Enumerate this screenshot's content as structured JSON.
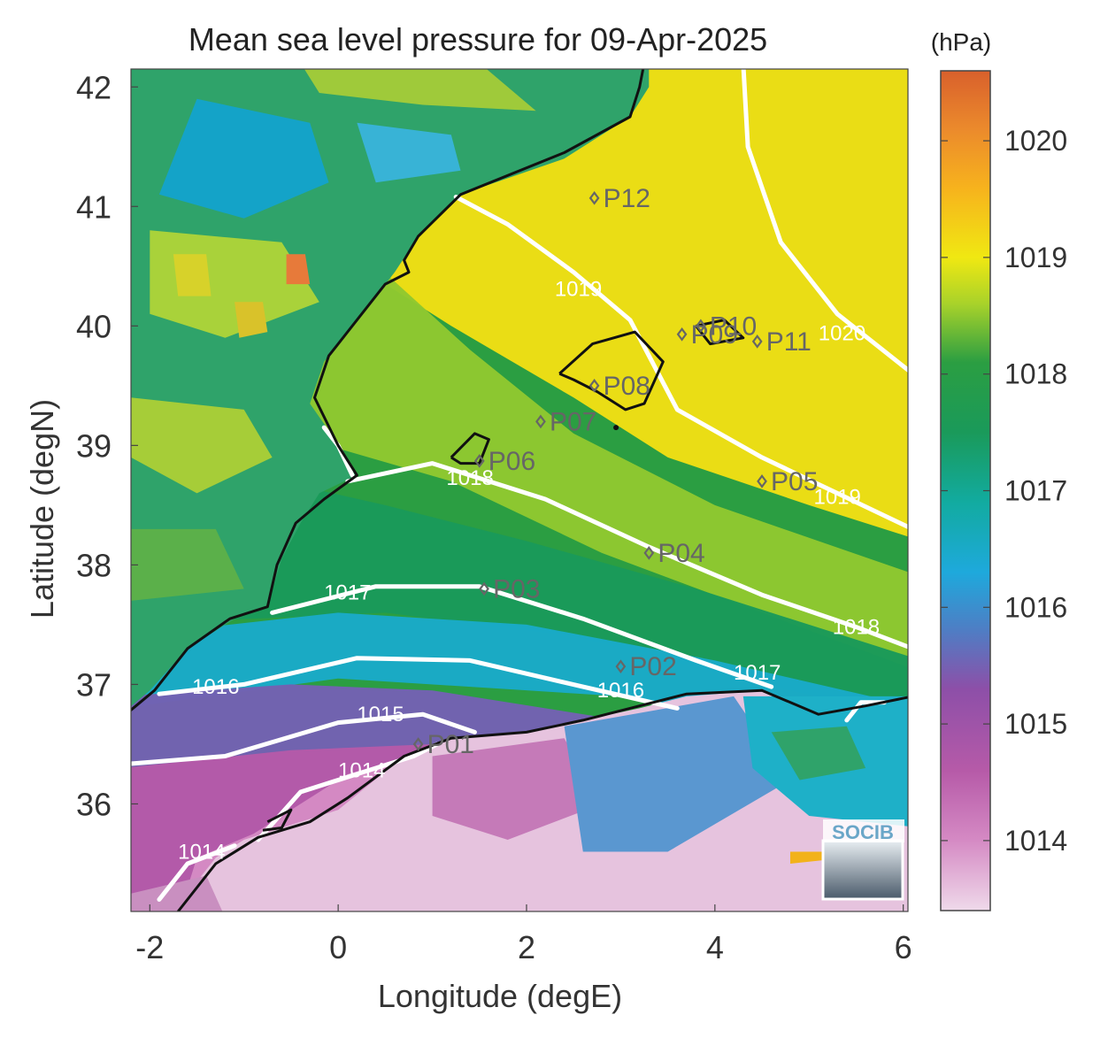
{
  "title": "Mean sea level pressure for 09-Apr-2025",
  "colorbar": {
    "unit": "(hPa)",
    "ticks": [
      "1014",
      "1015",
      "1016",
      "1017",
      "1018",
      "1019",
      "1020"
    ],
    "range": [
      1013.4,
      1020.6
    ],
    "stops": [
      {
        "v": 1013.4,
        "c": "#efd9ea"
      },
      {
        "v": 1014.0,
        "c": "#d58ac4"
      },
      {
        "v": 1014.6,
        "c": "#b65aa8"
      },
      {
        "v": 1015.3,
        "c": "#8d4fa8"
      },
      {
        "v": 1015.8,
        "c": "#4f7dc4"
      },
      {
        "v": 1016.3,
        "c": "#1ea9dc"
      },
      {
        "v": 1016.9,
        "c": "#12aba0"
      },
      {
        "v": 1017.5,
        "c": "#1a9a5a"
      },
      {
        "v": 1018.1,
        "c": "#2b9e42"
      },
      {
        "v": 1018.6,
        "c": "#a8d22a"
      },
      {
        "v": 1019.0,
        "c": "#f0e812"
      },
      {
        "v": 1019.6,
        "c": "#f7b21d"
      },
      {
        "v": 1020.1,
        "c": "#eb8a2c"
      },
      {
        "v": 1020.6,
        "c": "#d9602c"
      }
    ]
  },
  "axes": {
    "xlabel": "Longitude (degE)",
    "ylabel": "Latitude (degN)",
    "xticks": [
      "-2",
      "0",
      "2",
      "4",
      "6"
    ],
    "yticks": [
      "36",
      "37",
      "38",
      "39",
      "40",
      "41",
      "42"
    ],
    "xlim": [
      -2.2,
      6.05
    ],
    "ylim": [
      35.1,
      42.15
    ]
  },
  "contours": [
    {
      "label": "1014",
      "lon": -1.45,
      "lat": 35.6
    },
    {
      "label": "1014",
      "lon": 0.25,
      "lat": 36.28
    },
    {
      "label": "1015",
      "lon": 0.45,
      "lat": 36.75
    },
    {
      "label": "1016",
      "lon": -1.3,
      "lat": 36.98
    },
    {
      "label": "1016",
      "lon": 3.0,
      "lat": 36.95
    },
    {
      "label": "1017",
      "lon": 0.1,
      "lat": 37.77
    },
    {
      "label": "1017",
      "lon": 4.45,
      "lat": 37.1
    },
    {
      "label": "1018",
      "lon": 1.4,
      "lat": 38.73
    },
    {
      "label": "1018",
      "lon": 5.5,
      "lat": 37.48
    },
    {
      "label": "1019",
      "lon": 2.55,
      "lat": 40.31
    },
    {
      "label": "1019",
      "lon": 5.3,
      "lat": 38.57
    },
    {
      "label": "1020",
      "lon": 5.35,
      "lat": 39.94
    }
  ],
  "stations": [
    {
      "id": "P01",
      "lon": 0.85,
      "lat": 36.5
    },
    {
      "id": "P02",
      "lon": 3.0,
      "lat": 37.15
    },
    {
      "id": "P03",
      "lon": 1.55,
      "lat": 37.8
    },
    {
      "id": "P04",
      "lon": 3.3,
      "lat": 38.1
    },
    {
      "id": "P05",
      "lon": 4.5,
      "lat": 38.7
    },
    {
      "id": "P06",
      "lon": 1.5,
      "lat": 38.87
    },
    {
      "id": "P07",
      "lon": 2.15,
      "lat": 39.2
    },
    {
      "id": "P08",
      "lon": 2.72,
      "lat": 39.5
    },
    {
      "id": "P09",
      "lon": 3.65,
      "lat": 39.93
    },
    {
      "id": "P10",
      "lon": 3.85,
      "lat": 40.0
    },
    {
      "id": "P11",
      "lon": 4.45,
      "lat": 39.87
    },
    {
      "id": "P12",
      "lon": 2.72,
      "lat": 41.07
    }
  ],
  "logo": {
    "text": "SOCIB"
  },
  "colors": {
    "coast": "#111111",
    "contour": "#ffffff",
    "station": "#666666"
  }
}
